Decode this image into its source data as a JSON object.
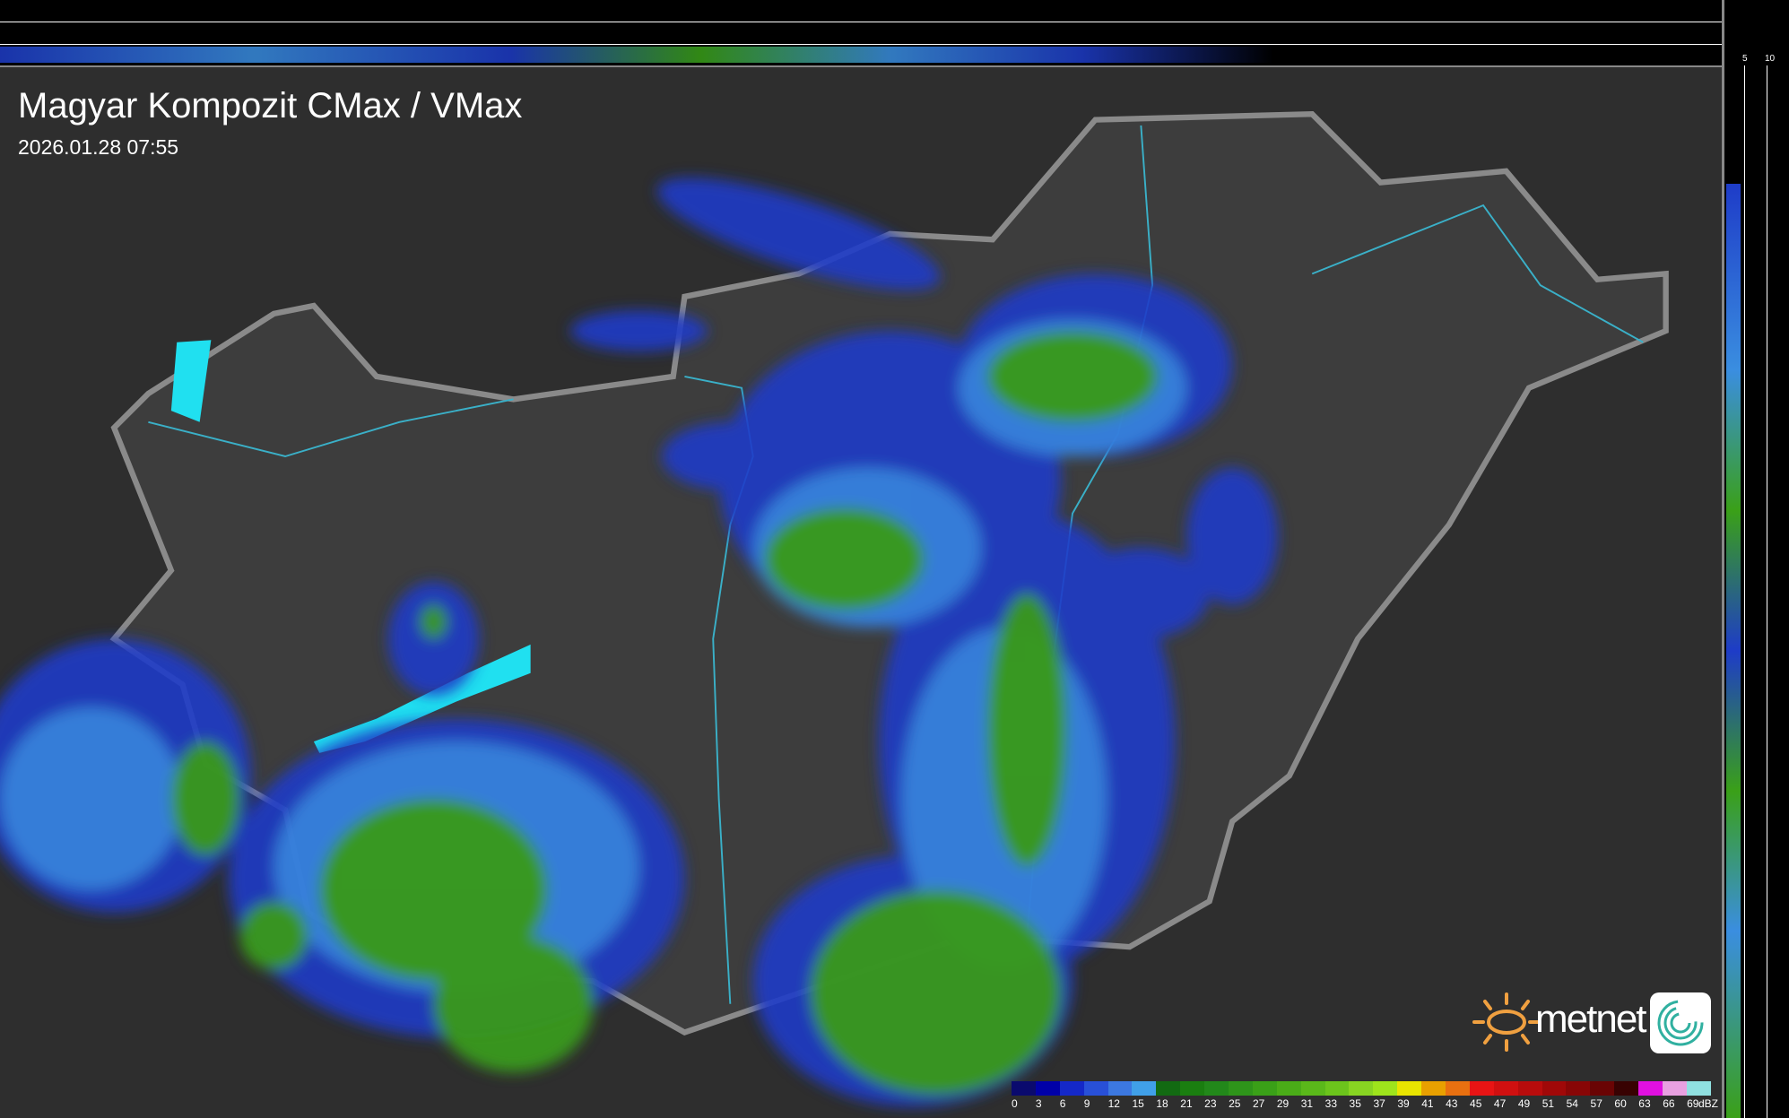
{
  "header": {
    "title": "Magyar Kompozit CMax / VMax",
    "timestamp": "2026.01.28 07:55"
  },
  "profile_axes": {
    "top_ticks": [
      "10",
      "5"
    ],
    "right_ticks": [
      "5",
      "10"
    ]
  },
  "legend": {
    "unit": "dBZ",
    "labels": [
      "0",
      "3",
      "6",
      "9",
      "12",
      "15",
      "18",
      "21",
      "23",
      "25",
      "27",
      "29",
      "31",
      "33",
      "35",
      "37",
      "39",
      "41",
      "43",
      "45",
      "47",
      "49",
      "51",
      "54",
      "57",
      "60",
      "63",
      "66",
      "69"
    ],
    "colors": [
      "#0a0a6e",
      "#0000a8",
      "#1428c8",
      "#2850d8",
      "#3c78e0",
      "#40a0e8",
      "#126a12",
      "#1a7e10",
      "#22881a",
      "#2e941a",
      "#3aa018",
      "#4aac18",
      "#5ab81a",
      "#6cc41c",
      "#88d422",
      "#9ee41c",
      "#e8e400",
      "#e8a000",
      "#e87010",
      "#e81414",
      "#d01010",
      "#b80c0c",
      "#a00808",
      "#880606",
      "#6a0404",
      "#380202",
      "#e010e0",
      "#e8a0e0",
      "#90e0e0"
    ]
  },
  "branding": {
    "logo_text": "metnet",
    "accent": "#f0a040"
  },
  "colors": {
    "background": "#2e2e2e",
    "border": "#8a8a8a",
    "rivers": "#3ab0c8",
    "lakes": "#20e0f0"
  }
}
